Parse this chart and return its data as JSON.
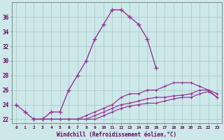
{
  "xlabel": "Windchill (Refroidissement éolien,°C)",
  "bg_color": "#cde8e8",
  "line_color": "#993399",
  "grid_color": "#aacccc",
  "line1_x": [
    0,
    1,
    2,
    3,
    4,
    5,
    6,
    7,
    8,
    9,
    10,
    11,
    12,
    13,
    14,
    15,
    16
  ],
  "line1_y": [
    24,
    23,
    22,
    22,
    23,
    23,
    26,
    28,
    30,
    33,
    35,
    37,
    37,
    36,
    35,
    33,
    29
  ],
  "line2_x": [
    2,
    3,
    4,
    5,
    6,
    7,
    8,
    9,
    10,
    11,
    12,
    13,
    14,
    15,
    16,
    17,
    18,
    19,
    20,
    21,
    22,
    23
  ],
  "line2_y": [
    22,
    22,
    22,
    22,
    22,
    22,
    22.5,
    23,
    23.5,
    24,
    25,
    25.5,
    25.5,
    26,
    26,
    26.5,
    27,
    27,
    27,
    26.5,
    26,
    25.5
  ],
  "line3_x": [
    2,
    3,
    4,
    5,
    6,
    7,
    8,
    9,
    10,
    11,
    12,
    13,
    14,
    15,
    16,
    17,
    18,
    19,
    20,
    21,
    22,
    23
  ],
  "line3_y": [
    22,
    22,
    22,
    22,
    22,
    22,
    22,
    22.5,
    23,
    23.5,
    24,
    24.2,
    24.5,
    24.8,
    25,
    25,
    25.2,
    25.3,
    25.5,
    26,
    26,
    25
  ],
  "line4_x": [
    2,
    3,
    4,
    5,
    6,
    7,
    8,
    9,
    10,
    11,
    12,
    13,
    14,
    15,
    16,
    17,
    18,
    19,
    20,
    21,
    22,
    23
  ],
  "line4_y": [
    22,
    22,
    22,
    22,
    22,
    22,
    22,
    22,
    22.5,
    23,
    23.5,
    23.8,
    24,
    24.2,
    24.2,
    24.5,
    24.8,
    25,
    25,
    25.5,
    25.8,
    25
  ],
  "ylim": [
    21.5,
    38
  ],
  "xtick_labels": [
    "0",
    "1",
    "2",
    "3",
    "4",
    "5",
    "6",
    "7",
    "8",
    "9",
    "10",
    "11",
    "12",
    "13",
    "14",
    "15",
    "16",
    "17",
    "18",
    "19",
    "20",
    "21",
    "22",
    "23"
  ],
  "ytick_vals": [
    22,
    24,
    26,
    28,
    30,
    32,
    34,
    36
  ],
  "ytick_labels": [
    "22",
    "24",
    "26",
    "28",
    "30",
    "32",
    "34",
    "36"
  ]
}
